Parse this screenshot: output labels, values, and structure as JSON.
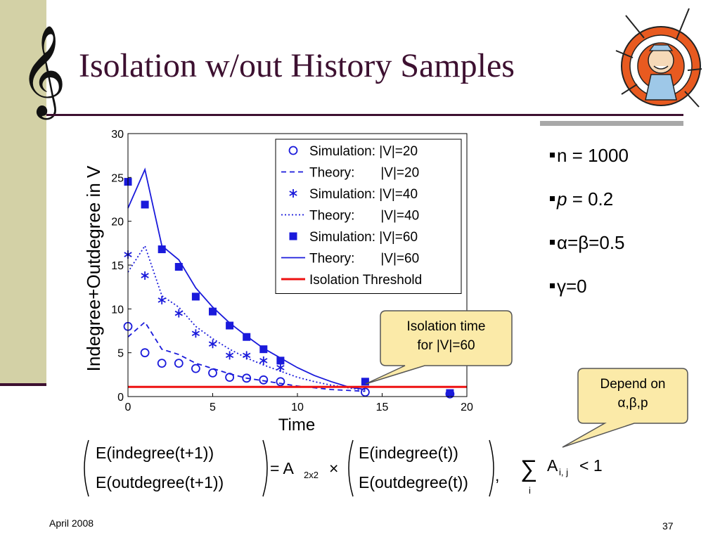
{
  "slide": {
    "title": "Isolation w/out History Samples",
    "footer_date": "April 2008",
    "page_number": "37",
    "decor_icon": "treble-clef-icon",
    "mascot_icon": "dartboard-man-icon",
    "accent_color": "#3d1030",
    "sidebar_color": "#d3d1a6"
  },
  "bullets": [
    {
      "text": "n = 1000"
    },
    {
      "var": "p",
      "text": " = 0.2"
    },
    {
      "text": "α=β=0.5"
    },
    {
      "text": "γ=0"
    }
  ],
  "callouts": {
    "isolation_time": [
      "Isolation time",
      "for |V|=60"
    ],
    "depend_on": [
      "Depend on",
      "α,β,p"
    ]
  },
  "equation": {
    "lhs_top": "E(indegree(t+1))",
    "lhs_bottom": "E(outdegree(t+1))",
    "equals_matrix": "= A",
    "matrix_sub": "2x2",
    "times": "×",
    "rhs_top": "E(indegree(t))",
    "rhs_bottom": "E(outdegree(t))",
    "comma": ",",
    "sum": "∑",
    "sum_sub": "i",
    "sum_term": "A",
    "sum_term_sub": "i, j",
    "inequality": "< 1"
  },
  "chart_data": {
    "type": "line",
    "xlabel": "Time",
    "ylabel": "Indegree+Outdegree in V",
    "xlim": [
      0,
      20
    ],
    "ylim": [
      0,
      30
    ],
    "xticks": [
      0,
      5,
      10,
      15,
      20
    ],
    "yticks": [
      0,
      5,
      10,
      15,
      20,
      25,
      30
    ],
    "grid": false,
    "legend_position": "top-right",
    "series": [
      {
        "name": "Simulation: |V|=20",
        "marker": "circle",
        "line": "none",
        "color": "#1a1adb",
        "x": [
          0,
          1,
          2,
          3,
          4,
          5,
          6,
          7,
          8,
          9,
          14,
          19
        ],
        "y": [
          8.0,
          5.0,
          3.8,
          3.8,
          3.2,
          2.7,
          2.2,
          2.1,
          1.9,
          1.7,
          0.5,
          0.3
        ]
      },
      {
        "name": "Theory:       |V|=20",
        "marker": "none",
        "line": "dashed",
        "color": "#1a1adb",
        "x": [
          0,
          1,
          2,
          3,
          4,
          5,
          6,
          7,
          8,
          9,
          10,
          11,
          12,
          13,
          14
        ],
        "y": [
          6.8,
          8.5,
          5.4,
          4.8,
          3.8,
          3.2,
          2.6,
          2.1,
          1.8,
          1.5,
          1.2,
          1.0,
          0.8,
          0.7,
          0.6
        ]
      },
      {
        "name": "Simulation: |V|=40",
        "marker": "asterisk",
        "line": "none",
        "color": "#1a1adb",
        "x": [
          0,
          1,
          2,
          3,
          4,
          5,
          6,
          7,
          8,
          9
        ],
        "y": [
          16.2,
          13.8,
          11.0,
          9.5,
          7.2,
          6.0,
          4.7,
          4.7,
          4.1,
          3.3
        ]
      },
      {
        "name": "Theory:       |V|=40",
        "marker": "none",
        "line": "dotted",
        "color": "#1a1adb",
        "x": [
          0,
          1,
          2,
          3,
          4,
          5,
          6,
          7,
          8,
          9,
          10,
          11,
          12,
          13,
          14
        ],
        "y": [
          14.2,
          17.2,
          11.5,
          10.2,
          8.0,
          6.6,
          5.4,
          4.4,
          3.6,
          2.9,
          2.2,
          1.7,
          1.3,
          1.0,
          0.7
        ]
      },
      {
        "name": "Simulation: |V|=60",
        "marker": "square",
        "line": "none",
        "color": "#1a1adb",
        "x": [
          0,
          1,
          2,
          3,
          4,
          5,
          6,
          7,
          8,
          9,
          14,
          19
        ],
        "y": [
          24.5,
          21.9,
          16.8,
          14.8,
          11.4,
          9.7,
          8.1,
          6.8,
          5.4,
          4.1,
          1.7,
          0.4
        ]
      },
      {
        "name": "Theory:       |V|=60",
        "marker": "none",
        "line": "solid",
        "color": "#1a1adb",
        "x": [
          0,
          1,
          2,
          3,
          4,
          5,
          6,
          7,
          8,
          9,
          10,
          11,
          12,
          13,
          14
        ],
        "y": [
          21.5,
          25.9,
          17.2,
          15.6,
          12.4,
          10.2,
          8.4,
          6.9,
          5.5,
          4.4,
          3.3,
          2.4,
          1.7,
          1.1,
          0.8
        ]
      },
      {
        "name": "Isolation Threshold",
        "marker": "none",
        "line": "solid",
        "color": "#ee1111",
        "x": [
          0,
          20
        ],
        "y": [
          1.1,
          1.1
        ]
      }
    ]
  }
}
